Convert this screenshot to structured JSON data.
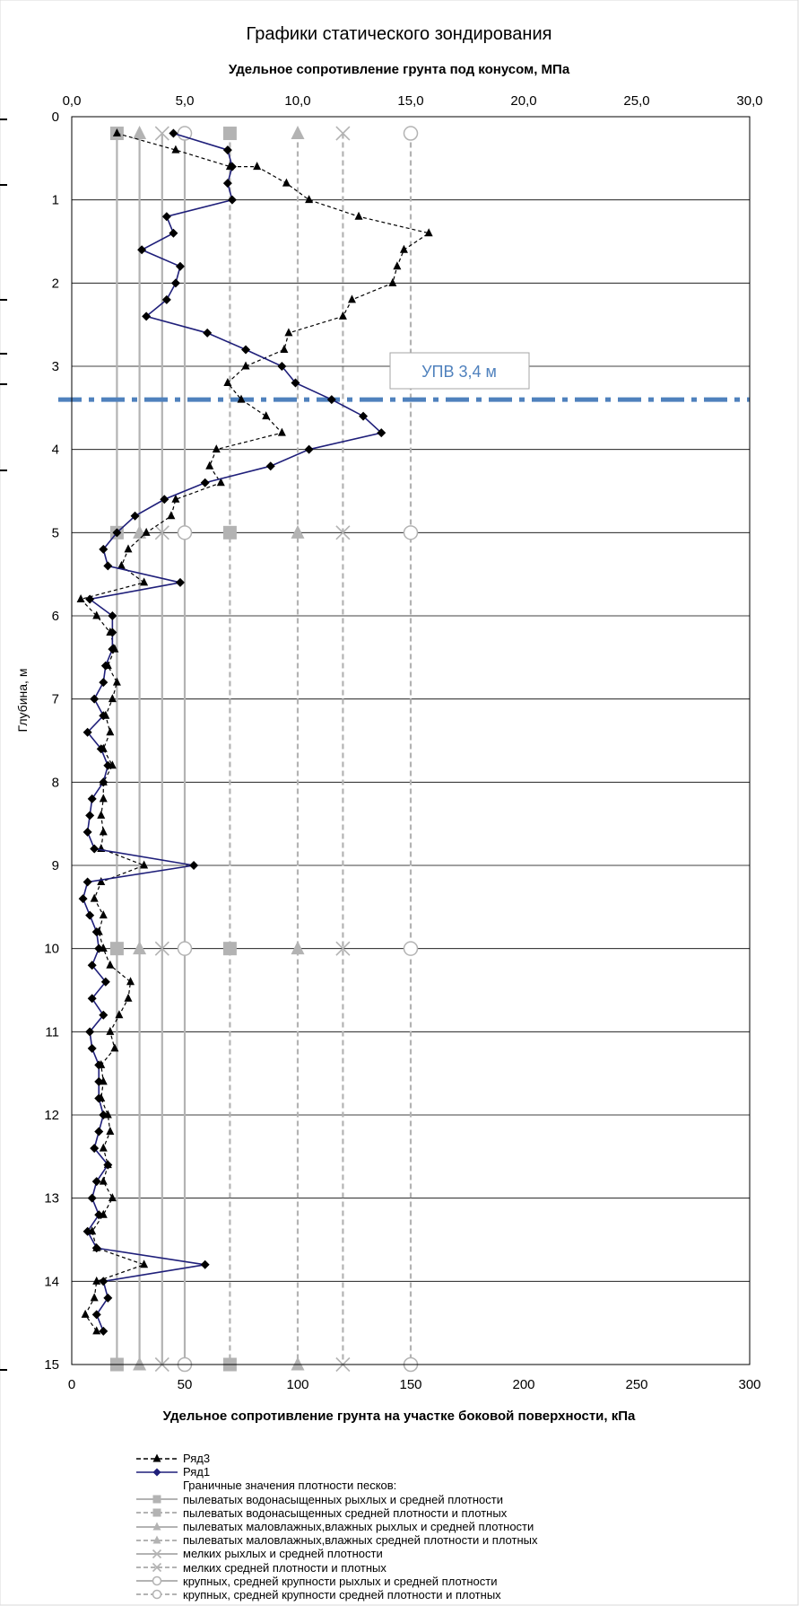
{
  "chart_data": {
    "type": "line",
    "title": "Графики статического зондирования",
    "top_axis": {
      "label": "Удельное сопротивление грунта под конусом, МПа",
      "range": [
        0,
        30
      ],
      "ticks": [
        "0,0",
        "5,0",
        "10,0",
        "15,0",
        "20,0",
        "25,0",
        "30,0"
      ]
    },
    "bottom_axis": {
      "label": "Удельное сопротивление грунта на участке боковой  поверхности, кПа",
      "range": [
        0,
        300
      ],
      "ticks": [
        "0",
        "50",
        "100",
        "150",
        "200",
        "250",
        "300"
      ]
    },
    "y_axis": {
      "label": "Глубина, м",
      "range": [
        0,
        15
      ],
      "ticks": [
        "0",
        "1",
        "2",
        "3",
        "4",
        "5",
        "6",
        "7",
        "8",
        "9",
        "10",
        "11",
        "12",
        "13",
        "14",
        "15"
      ],
      "reversed": true
    },
    "grid": true,
    "annotation": {
      "text": "УПВ 3,4 м",
      "depth": 3.4,
      "color": "#4f81bd"
    },
    "series": [
      {
        "name": "Ряд3",
        "axis": "bottom",
        "style": "dashed",
        "color": "#000000",
        "marker": "triangle",
        "points": [
          [
            20,
            0.2
          ],
          [
            46,
            0.4
          ],
          [
            70,
            0.6
          ],
          [
            82,
            0.6
          ],
          [
            95,
            0.8
          ],
          [
            105,
            1.0
          ],
          [
            127,
            1.2
          ],
          [
            158,
            1.4
          ],
          [
            147,
            1.6
          ],
          [
            144,
            1.8
          ],
          [
            142,
            2.0
          ],
          [
            124,
            2.2
          ],
          [
            120,
            2.4
          ],
          [
            96,
            2.6
          ],
          [
            94,
            2.8
          ],
          [
            77,
            3.0
          ],
          [
            69,
            3.2
          ],
          [
            75,
            3.4
          ],
          [
            86,
            3.6
          ],
          [
            93,
            3.8
          ],
          [
            64,
            4.0
          ],
          [
            61,
            4.2
          ],
          [
            66,
            4.4
          ],
          [
            46,
            4.6
          ],
          [
            44,
            4.8
          ],
          [
            33,
            5.0
          ],
          [
            25,
            5.2
          ],
          [
            22,
            5.4
          ],
          [
            32,
            5.6
          ],
          [
            4,
            5.8
          ],
          [
            11,
            6.0
          ],
          [
            17,
            6.2
          ],
          [
            19,
            6.4
          ],
          [
            16,
            6.6
          ],
          [
            20,
            6.8
          ],
          [
            18,
            7.0
          ],
          [
            15,
            7.2
          ],
          [
            17,
            7.4
          ],
          [
            14,
            7.6
          ],
          [
            18,
            7.8
          ],
          [
            14,
            8.0
          ],
          [
            14,
            8.2
          ],
          [
            13,
            8.4
          ],
          [
            14,
            8.6
          ],
          [
            13,
            8.8
          ],
          [
            32,
            9.0
          ],
          [
            13,
            9.2
          ],
          [
            10,
            9.4
          ],
          [
            14,
            9.6
          ],
          [
            12,
            9.8
          ],
          [
            14,
            10.0
          ],
          [
            17,
            10.2
          ],
          [
            26,
            10.4
          ],
          [
            25,
            10.6
          ],
          [
            21,
            10.8
          ],
          [
            17,
            11.0
          ],
          [
            19,
            11.2
          ],
          [
            13,
            11.4
          ],
          [
            14,
            11.6
          ],
          [
            13,
            11.8
          ],
          [
            16,
            12.0
          ],
          [
            17,
            12.2
          ],
          [
            14,
            12.4
          ],
          [
            16,
            12.6
          ],
          [
            14,
            12.8
          ],
          [
            18,
            13.0
          ],
          [
            14,
            13.2
          ],
          [
            9,
            13.4
          ],
          [
            11,
            13.6
          ],
          [
            32,
            13.8
          ],
          [
            11,
            14.0
          ],
          [
            10,
            14.2
          ],
          [
            6,
            14.4
          ],
          [
            11,
            14.6
          ]
        ]
      },
      {
        "name": "Ряд1",
        "axis": "top",
        "style": "solid",
        "color": "#1f1f7a",
        "marker": "diamond",
        "points": [
          [
            4.5,
            0.2
          ],
          [
            6.9,
            0.4
          ],
          [
            7.1,
            0.6
          ],
          [
            6.9,
            0.8
          ],
          [
            7.1,
            1.0
          ],
          [
            4.2,
            1.2
          ],
          [
            4.5,
            1.4
          ],
          [
            3.1,
            1.6
          ],
          [
            4.8,
            1.8
          ],
          [
            4.6,
            2.0
          ],
          [
            4.2,
            2.2
          ],
          [
            3.3,
            2.4
          ],
          [
            6.0,
            2.6
          ],
          [
            7.7,
            2.8
          ],
          [
            9.3,
            3.0
          ],
          [
            9.9,
            3.2
          ],
          [
            11.5,
            3.4
          ],
          [
            12.9,
            3.6
          ],
          [
            13.7,
            3.8
          ],
          [
            10.5,
            4.0
          ],
          [
            8.8,
            4.2
          ],
          [
            5.9,
            4.4
          ],
          [
            4.1,
            4.6
          ],
          [
            2.8,
            4.8
          ],
          [
            2.0,
            5.0
          ],
          [
            1.4,
            5.2
          ],
          [
            1.6,
            5.4
          ],
          [
            4.8,
            5.6
          ],
          [
            0.8,
            5.8
          ],
          [
            1.8,
            6.0
          ],
          [
            1.8,
            6.2
          ],
          [
            1.8,
            6.4
          ],
          [
            1.5,
            6.6
          ],
          [
            1.4,
            6.8
          ],
          [
            1.0,
            7.0
          ],
          [
            1.4,
            7.2
          ],
          [
            0.7,
            7.4
          ],
          [
            1.3,
            7.6
          ],
          [
            1.6,
            7.8
          ],
          [
            1.4,
            8.0
          ],
          [
            0.9,
            8.2
          ],
          [
            0.8,
            8.4
          ],
          [
            0.7,
            8.6
          ],
          [
            1.0,
            8.8
          ],
          [
            5.4,
            9.0
          ],
          [
            0.7,
            9.2
          ],
          [
            0.5,
            9.4
          ],
          [
            0.8,
            9.6
          ],
          [
            1.1,
            9.8
          ],
          [
            1.2,
            10.0
          ],
          [
            0.9,
            10.2
          ],
          [
            1.5,
            10.4
          ],
          [
            0.9,
            10.6
          ],
          [
            1.4,
            10.8
          ],
          [
            0.8,
            11.0
          ],
          [
            0.9,
            11.2
          ],
          [
            1.2,
            11.4
          ],
          [
            1.2,
            11.6
          ],
          [
            1.2,
            11.8
          ],
          [
            1.4,
            12.0
          ],
          [
            1.2,
            12.2
          ],
          [
            1.0,
            12.4
          ],
          [
            1.6,
            12.6
          ],
          [
            1.1,
            12.8
          ],
          [
            0.9,
            13.0
          ],
          [
            1.2,
            13.2
          ],
          [
            0.7,
            13.4
          ],
          [
            1.1,
            13.6
          ],
          [
            5.9,
            13.8
          ],
          [
            1.4,
            14.0
          ],
          [
            1.6,
            14.2
          ],
          [
            1.1,
            14.4
          ],
          [
            1.4,
            14.6
          ]
        ]
      }
    ],
    "boundary_lines": {
      "color": "#b3b3b3",
      "depth_range": [
        0.2,
        15
      ],
      "marker_depths": [
        0.2,
        5,
        10,
        15
      ],
      "lines": [
        {
          "x": 20,
          "style": "solid",
          "marker": "square"
        },
        {
          "x": 30,
          "style": "solid",
          "marker": "triangle"
        },
        {
          "x": 40,
          "style": "solid",
          "marker": "x"
        },
        {
          "x": 50,
          "style": "solid",
          "marker": "circle"
        },
        {
          "x": 70,
          "style": "dashed",
          "marker": "square"
        },
        {
          "x": 100,
          "style": "dashed",
          "marker": "triangle"
        },
        {
          "x": 120,
          "style": "dashed",
          "marker": "x"
        },
        {
          "x": 150,
          "style": "dashed",
          "marker": "circle"
        }
      ]
    },
    "legend": {
      "header": "Граничные значения плотности песков:",
      "items": [
        {
          "label": "Ряд3",
          "type": "series",
          "color": "#000000",
          "style": "dashed",
          "marker": "triangle"
        },
        {
          "label": "Ряд1",
          "type": "series",
          "color": "#1f1f7a",
          "style": "solid",
          "marker": "diamond"
        },
        {
          "label": "пылеватых водонасыщенных рыхлых и средней плотности",
          "type": "boundary",
          "color": "#b3b3b3",
          "style": "solid",
          "marker": "square"
        },
        {
          "label": "пылеватых водонасыщенных средней плотности и плотных",
          "type": "boundary",
          "color": "#b3b3b3",
          "style": "dashed",
          "marker": "square"
        },
        {
          "label": "пылеватых  маловлажных,влажных рыхлых и средней плотности",
          "type": "boundary",
          "color": "#b3b3b3",
          "style": "solid",
          "marker": "triangle"
        },
        {
          "label": "пылеватых маловлажных,влажных средней плотности и плотных",
          "type": "boundary",
          "color": "#b3b3b3",
          "style": "dashed",
          "marker": "triangle"
        },
        {
          "label": "мелких рыхлых и средней плотности",
          "type": "boundary",
          "color": "#b3b3b3",
          "style": "solid",
          "marker": "x"
        },
        {
          "label": "мелких средней плотности и плотных",
          "type": "boundary",
          "color": "#b3b3b3",
          "style": "dashed",
          "marker": "x"
        },
        {
          "label": "крупных, средней крупности рыхлых и средней плотности",
          "type": "boundary",
          "color": "#b3b3b3",
          "style": "solid",
          "marker": "circle"
        },
        {
          "label": "крупных, средней крупности средней плотности и плотных",
          "type": "boundary",
          "color": "#b3b3b3",
          "style": "dashed",
          "marker": "circle"
        }
      ]
    }
  }
}
